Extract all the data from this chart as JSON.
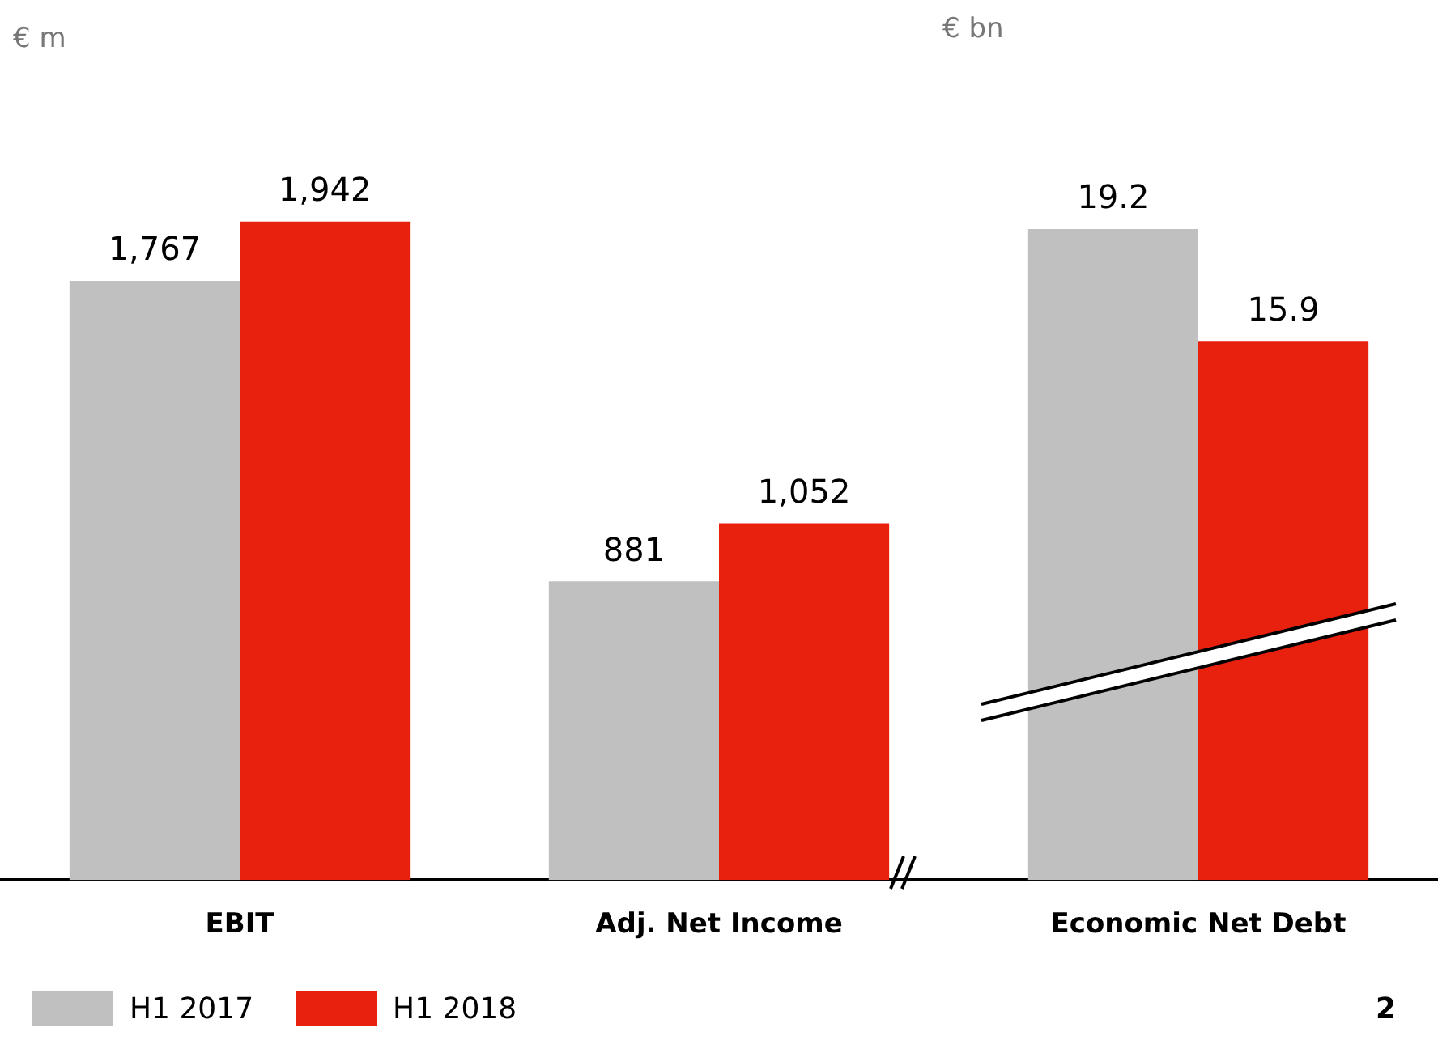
{
  "chart_data": {
    "type": "bar",
    "categories": [
      "EBIT",
      "Adj. Net Income",
      "Economic Net Debt"
    ],
    "series": [
      {
        "name": "H1 2017",
        "color": "#c0c0c0",
        "values": [
          1767,
          881,
          null
        ],
        "value_labels": [
          "1,767",
          "881",
          null
        ]
      },
      {
        "name": "H1 2018",
        "color": "#e8200e",
        "values": [
          1942,
          1052,
          null
        ],
        "value_labels": [
          "1,942",
          "1,052",
          null
        ]
      },
      {
        "color": "#c0c0c0",
        "axis": "y2",
        "values": [
          null,
          null,
          19.2
        ]
      },
      {
        "color": "#e8200e",
        "axis": "y2",
        "values": [
          null,
          null,
          15.9
        ]
      }
    ],
    "data_labels": true,
    "tick_labels": "x",
    "grid": false,
    "legend": "bottom left",
    "annotations": [
      "€ m",
      "€ bn",
      "2"
    ]
  }
}
